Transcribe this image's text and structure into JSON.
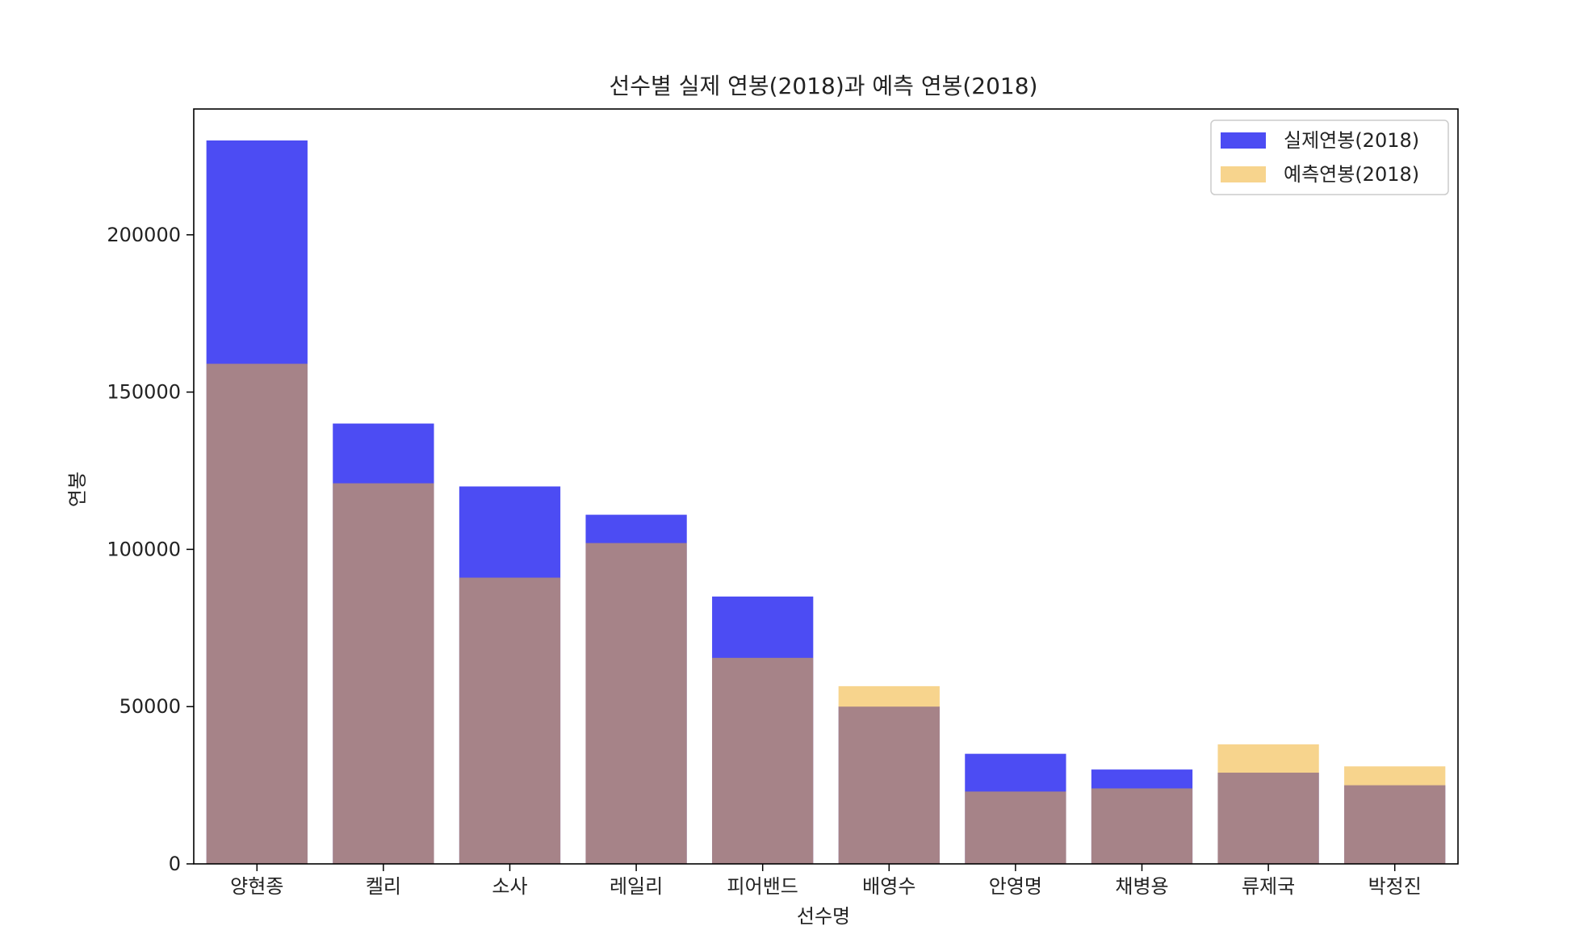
{
  "chart_data": {
    "type": "bar",
    "title": "선수별 실제 연봉(2018)과 예측 연봉(2018)",
    "xlabel": "선수명",
    "ylabel": "연봉",
    "categories": [
      "양현종",
      "켈리",
      "소사",
      "레일리",
      "피어밴드",
      "배영수",
      "안영명",
      "채병용",
      "류제국",
      "박정진"
    ],
    "series": [
      {
        "name": "실제연봉(2018)",
        "color": "#0000ee",
        "alpha": 0.7,
        "values": [
          230000,
          140000,
          120000,
          111000,
          85000,
          50000,
          35000,
          30000,
          29000,
          25000
        ]
      },
      {
        "name": "예측연봉(2018)",
        "color": "#f0b030",
        "alpha": 0.55,
        "values": [
          159000,
          121000,
          91000,
          102000,
          65500,
          56500,
          23000,
          24000,
          38000,
          31000
        ]
      }
    ],
    "ylim": [
      0,
      240000
    ],
    "yticks": [
      0,
      50000,
      100000,
      150000,
      200000
    ],
    "ytick_labels": [
      "0",
      "50000",
      "100000",
      "150000",
      "200000"
    ],
    "legend_position": "top-right",
    "grid": false
  }
}
